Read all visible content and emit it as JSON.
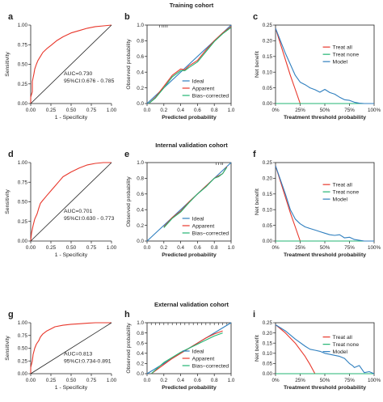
{
  "cohorts": [
    {
      "title": "Training cohort",
      "panels": [
        "a",
        "b",
        "c"
      ]
    },
    {
      "title": "Internal validation cohort",
      "panels": [
        "d",
        "e",
        "f"
      ]
    },
    {
      "title": "External validation cohort",
      "panels": [
        "g",
        "h",
        "i"
      ]
    }
  ],
  "colors": {
    "red": "#e8372b",
    "blue": "#2f7fbf",
    "green": "#23b573",
    "black": "#222222"
  },
  "chart_data": [
    {
      "panel": "a",
      "type": "line",
      "subtype": "roc",
      "xlabel": "1 - Specificity",
      "ylabel": "Sensitivity",
      "xlim": [
        0,
        1
      ],
      "ylim": [
        0,
        1
      ],
      "xticks": [
        "0.00",
        "0.25",
        "0.50",
        "0.75",
        "1.00"
      ],
      "yticks": [
        "0.00",
        "0.25",
        "0.50",
        "0.75",
        "1.00"
      ],
      "annotation": [
        "AUC=0.730",
        "95%CI:0.676 - 0.785"
      ],
      "series": [
        {
          "role": "roc",
          "color": "#e8372b",
          "x": [
            0,
            0,
            0.02,
            0.02,
            0.04,
            0.05,
            0.07,
            0.09,
            0.12,
            0.15,
            0.2,
            0.25,
            0.32,
            0.4,
            0.5,
            0.6,
            0.7,
            0.8,
            0.9,
            1.0
          ],
          "y": [
            0,
            0.08,
            0.15,
            0.28,
            0.38,
            0.44,
            0.5,
            0.55,
            0.6,
            0.65,
            0.7,
            0.74,
            0.8,
            0.85,
            0.9,
            0.93,
            0.96,
            0.98,
            0.99,
            1.0
          ]
        },
        {
          "role": "reference",
          "color": "#222222",
          "x": [
            0,
            1
          ],
          "y": [
            0,
            1
          ]
        }
      ]
    },
    {
      "panel": "b",
      "type": "line",
      "subtype": "calibration",
      "xlabel": "Predicted probability",
      "ylabel": "Observed  probability",
      "xlim": [
        0,
        1
      ],
      "ylim": [
        0,
        1
      ],
      "xticks": [
        "0.0",
        "0.2",
        "0.4",
        "0.6",
        "0.8",
        "1.0"
      ],
      "yticks": [
        "0.0",
        "0.2",
        "0.4",
        "0.6",
        "0.8",
        "1.0"
      ],
      "legend": "bottom-right",
      "rug_x": [
        0.15,
        0.18,
        0.2,
        0.22,
        0.24
      ],
      "series": [
        {
          "name": "Ideal",
          "color": "#2f7fbf",
          "x": [
            0,
            1
          ],
          "y": [
            0,
            1
          ]
        },
        {
          "name": "Apparent",
          "color": "#e8372b",
          "x": [
            0.02,
            0.1,
            0.2,
            0.3,
            0.4,
            0.45,
            0.5,
            0.6,
            0.7,
            0.8,
            0.9,
            1.0
          ],
          "y": [
            0.0,
            0.08,
            0.22,
            0.36,
            0.44,
            0.43,
            0.48,
            0.55,
            0.68,
            0.8,
            0.9,
            0.98
          ]
        },
        {
          "name": "Bias−corrected",
          "color": "#23b573",
          "x": [
            0.02,
            0.1,
            0.2,
            0.3,
            0.4,
            0.45,
            0.5,
            0.6,
            0.7,
            0.8,
            0.9,
            1.0
          ],
          "y": [
            0.0,
            0.07,
            0.2,
            0.34,
            0.42,
            0.42,
            0.46,
            0.53,
            0.66,
            0.79,
            0.89,
            0.97
          ]
        }
      ]
    },
    {
      "panel": "c",
      "type": "line",
      "subtype": "decision-curve",
      "xlabel": "Treatment threshold probability",
      "ylabel": "Net benefit",
      "xlim": [
        0,
        1
      ],
      "ylim": [
        0,
        0.25
      ],
      "xticks": [
        "0%",
        "25%",
        "50%",
        "75%",
        "100%"
      ],
      "yticks": [
        "0.00",
        "0.05",
        "0.10",
        "0.15",
        "0.20",
        "0.25"
      ],
      "legend": "top-right",
      "series": [
        {
          "name": "Treat all",
          "color": "#e8372b",
          "x": [
            0,
            0.05,
            0.1,
            0.15,
            0.2,
            0.25
          ],
          "y": [
            0.24,
            0.19,
            0.14,
            0.09,
            0.045,
            0.0
          ]
        },
        {
          "name": "Treat none",
          "color": "#23b573",
          "x": [
            0,
            1
          ],
          "y": [
            0,
            0
          ]
        },
        {
          "name": "Model",
          "color": "#2f7fbf",
          "x": [
            0,
            0.1,
            0.2,
            0.25,
            0.3,
            0.35,
            0.4,
            0.45,
            0.5,
            0.55,
            0.6,
            0.65,
            0.7,
            0.75,
            0.8,
            0.85,
            0.9,
            0.95,
            1.0
          ],
          "y": [
            0.24,
            0.16,
            0.09,
            0.068,
            0.06,
            0.05,
            0.044,
            0.036,
            0.045,
            0.035,
            0.03,
            0.02,
            0.012,
            0.01,
            0.004,
            0.001,
            0,
            0,
            0
          ]
        }
      ]
    },
    {
      "panel": "d",
      "type": "line",
      "subtype": "roc",
      "xlabel": "1 - Specificity",
      "ylabel": "Sensitivity",
      "xlim": [
        0,
        1
      ],
      "ylim": [
        0,
        1
      ],
      "xticks": [
        "0.00",
        "0.25",
        "0.50",
        "0.75",
        "1.00"
      ],
      "yticks": [
        "0.00",
        "0.25",
        "0.50",
        "0.75",
        "1.00"
      ],
      "annotation": [
        "AUC=0.701",
        "95%CI:0.630 - 0.773"
      ],
      "series": [
        {
          "role": "roc",
          "color": "#e8372b",
          "x": [
            0,
            0.01,
            0.03,
            0.05,
            0.08,
            0.1,
            0.12,
            0.15,
            0.2,
            0.25,
            0.3,
            0.35,
            0.4,
            0.5,
            0.6,
            0.7,
            0.8,
            0.9,
            1.0
          ],
          "y": [
            0,
            0.1,
            0.2,
            0.28,
            0.35,
            0.42,
            0.48,
            0.52,
            0.58,
            0.64,
            0.7,
            0.76,
            0.82,
            0.88,
            0.93,
            0.97,
            0.99,
            1.0,
            1.0
          ]
        },
        {
          "role": "reference",
          "color": "#222222",
          "x": [
            0,
            1
          ],
          "y": [
            0,
            1
          ]
        }
      ]
    },
    {
      "panel": "e",
      "type": "line",
      "subtype": "calibration",
      "xlabel": "Predicted probability",
      "ylabel": "Observed  probability",
      "xlim": [
        0,
        1
      ],
      "ylim": [
        0,
        1
      ],
      "xticks": [
        "0.0",
        "0.2",
        "0.4",
        "0.6",
        "0.8",
        "1.0"
      ],
      "yticks": [
        "0.0",
        "0.2",
        "0.4",
        "0.6",
        "0.8",
        "1.0"
      ],
      "legend": "bottom-right",
      "rug_x": [
        0.82,
        0.85,
        0.88,
        0.9
      ],
      "series": [
        {
          "name": "Ideal",
          "color": "#2f7fbf",
          "x": [
            0,
            1
          ],
          "y": [
            0,
            1
          ]
        },
        {
          "name": "Apparent",
          "color": "#e8372b",
          "x": [
            0.2,
            0.3,
            0.4,
            0.5,
            0.6,
            0.7,
            0.8,
            0.85,
            0.9,
            0.95
          ],
          "y": [
            0.18,
            0.3,
            0.38,
            0.5,
            0.6,
            0.7,
            0.8,
            0.83,
            0.86,
            0.95
          ]
        },
        {
          "name": "Bias−corrected",
          "color": "#23b573",
          "x": [
            0.2,
            0.3,
            0.4,
            0.5,
            0.6,
            0.7,
            0.8,
            0.85,
            0.9,
            0.95
          ],
          "y": [
            0.17,
            0.29,
            0.37,
            0.49,
            0.6,
            0.69,
            0.8,
            0.82,
            0.86,
            0.94
          ]
        }
      ]
    },
    {
      "panel": "f",
      "type": "line",
      "subtype": "decision-curve",
      "xlabel": "Treatment threshold probability",
      "ylabel": "Net benefit",
      "xlim": [
        0,
        1
      ],
      "ylim": [
        0,
        0.25
      ],
      "xticks": [
        "0%",
        "25%",
        "50%",
        "75%",
        "100%"
      ],
      "yticks": [
        "0.00",
        "0.05",
        "0.10",
        "0.15",
        "0.20",
        "0.25"
      ],
      "legend": "top-right",
      "series": [
        {
          "name": "Treat all",
          "color": "#e8372b",
          "x": [
            0,
            0.05,
            0.1,
            0.15,
            0.2,
            0.25
          ],
          "y": [
            0.24,
            0.19,
            0.14,
            0.09,
            0.045,
            0.0
          ]
        },
        {
          "name": "Treat none",
          "color": "#23b573",
          "x": [
            0,
            1
          ],
          "y": [
            0,
            0
          ]
        },
        {
          "name": "Model",
          "color": "#2f7fbf",
          "x": [
            0,
            0.1,
            0.15,
            0.2,
            0.25,
            0.3,
            0.35,
            0.4,
            0.45,
            0.5,
            0.55,
            0.6,
            0.65,
            0.7,
            0.75,
            0.8,
            0.9,
            1.0
          ],
          "y": [
            0.24,
            0.15,
            0.1,
            0.07,
            0.055,
            0.045,
            0.04,
            0.035,
            0.03,
            0.025,
            0.02,
            0.018,
            0.02,
            0.01,
            0.012,
            0.005,
            0,
            0
          ]
        }
      ]
    },
    {
      "panel": "g",
      "type": "line",
      "subtype": "roc",
      "xlabel": "1 - Specificity",
      "ylabel": "Sensitivity",
      "xlim": [
        0,
        1
      ],
      "ylim": [
        0,
        1
      ],
      "xticks": [
        "0.00",
        "0.25",
        "0.50",
        "0.75",
        "1.00"
      ],
      "yticks": [
        "0.00",
        "0.25",
        "0.50",
        "0.75",
        "1.00"
      ],
      "annotation": [
        "AUC=0.813",
        "95%CI:0.734-0.891"
      ],
      "series": [
        {
          "role": "roc",
          "color": "#e8372b",
          "x": [
            0,
            0,
            0.02,
            0.03,
            0.05,
            0.07,
            0.1,
            0.12,
            0.15,
            0.2,
            0.25,
            0.3,
            0.4,
            0.5,
            0.6,
            0.7,
            0.8,
            0.9,
            1.0
          ],
          "y": [
            0,
            0.12,
            0.25,
            0.38,
            0.5,
            0.58,
            0.65,
            0.72,
            0.78,
            0.84,
            0.88,
            0.92,
            0.95,
            0.97,
            0.98,
            0.99,
            1.0,
            1.0,
            1.0
          ]
        },
        {
          "role": "reference",
          "color": "#222222",
          "x": [
            0,
            1
          ],
          "y": [
            0,
            1
          ]
        }
      ]
    },
    {
      "panel": "h",
      "type": "line",
      "subtype": "calibration",
      "xlabel": "Predicted probability",
      "ylabel": "Observed  probability",
      "xlim": [
        0,
        1
      ],
      "ylim": [
        0,
        1
      ],
      "xticks": [
        "0.0",
        "0.2",
        "0.4",
        "0.6",
        "0.8",
        "1.0"
      ],
      "yticks": [
        "0.0",
        "0.2",
        "0.4",
        "0.6",
        "0.8",
        "1.0"
      ],
      "legend": "bottom-right",
      "rug_x": [
        0.05,
        0.1,
        0.15,
        0.2,
        0.25,
        0.3,
        0.35,
        0.4,
        0.45,
        0.5,
        0.55,
        0.6,
        0.65,
        0.7,
        0.75,
        0.8,
        0.85,
        0.9,
        0.95
      ],
      "series": [
        {
          "name": "Ideal",
          "color": "#2f7fbf",
          "x": [
            0,
            1
          ],
          "y": [
            0,
            1
          ]
        },
        {
          "name": "Apparent",
          "color": "#e8372b",
          "x": [
            0.05,
            0.2,
            0.3,
            0.4,
            0.5,
            0.6,
            0.7,
            0.8,
            0.9
          ],
          "y": [
            0.0,
            0.18,
            0.3,
            0.4,
            0.5,
            0.6,
            0.7,
            0.78,
            0.84
          ]
        },
        {
          "name": "Bias−corrected",
          "color": "#23b573",
          "x": [
            0.05,
            0.2,
            0.3,
            0.4,
            0.5,
            0.6,
            0.7,
            0.8,
            0.9
          ],
          "y": [
            0.0,
            0.22,
            0.32,
            0.42,
            0.5,
            0.58,
            0.66,
            0.74,
            0.8
          ]
        }
      ]
    },
    {
      "panel": "i",
      "type": "line",
      "subtype": "decision-curve",
      "xlabel": "Treatment threshold probability",
      "ylabel": "Net benefit",
      "xlim": [
        0,
        1
      ],
      "ylim": [
        0,
        0.25
      ],
      "xticks": [
        "0%",
        "25%",
        "50%",
        "75%",
        "100%"
      ],
      "yticks": [
        "0.00",
        "0.05",
        "0.10",
        "0.15",
        "0.20",
        "0.25"
      ],
      "legend": "top-right",
      "series": [
        {
          "name": "Treat all",
          "color": "#e8372b",
          "x": [
            0,
            0.1,
            0.2,
            0.3,
            0.35,
            0.4
          ],
          "y": [
            0.24,
            0.2,
            0.15,
            0.085,
            0.045,
            0.0
          ]
        },
        {
          "name": "Treat none",
          "color": "#23b573",
          "x": [
            0,
            1
          ],
          "y": [
            0,
            0
          ]
        },
        {
          "name": "Model",
          "color": "#2f7fbf",
          "x": [
            0,
            0.1,
            0.2,
            0.3,
            0.35,
            0.4,
            0.45,
            0.5,
            0.55,
            0.6,
            0.65,
            0.7,
            0.75,
            0.78,
            0.8,
            0.85,
            0.9,
            0.95,
            1.0
          ],
          "y": [
            0.24,
            0.21,
            0.17,
            0.135,
            0.12,
            0.115,
            0.11,
            0.1,
            0.095,
            0.09,
            0.085,
            0.075,
            0.05,
            0.04,
            0.03,
            0.04,
            0.005,
            0.01,
            0
          ]
        }
      ]
    }
  ]
}
